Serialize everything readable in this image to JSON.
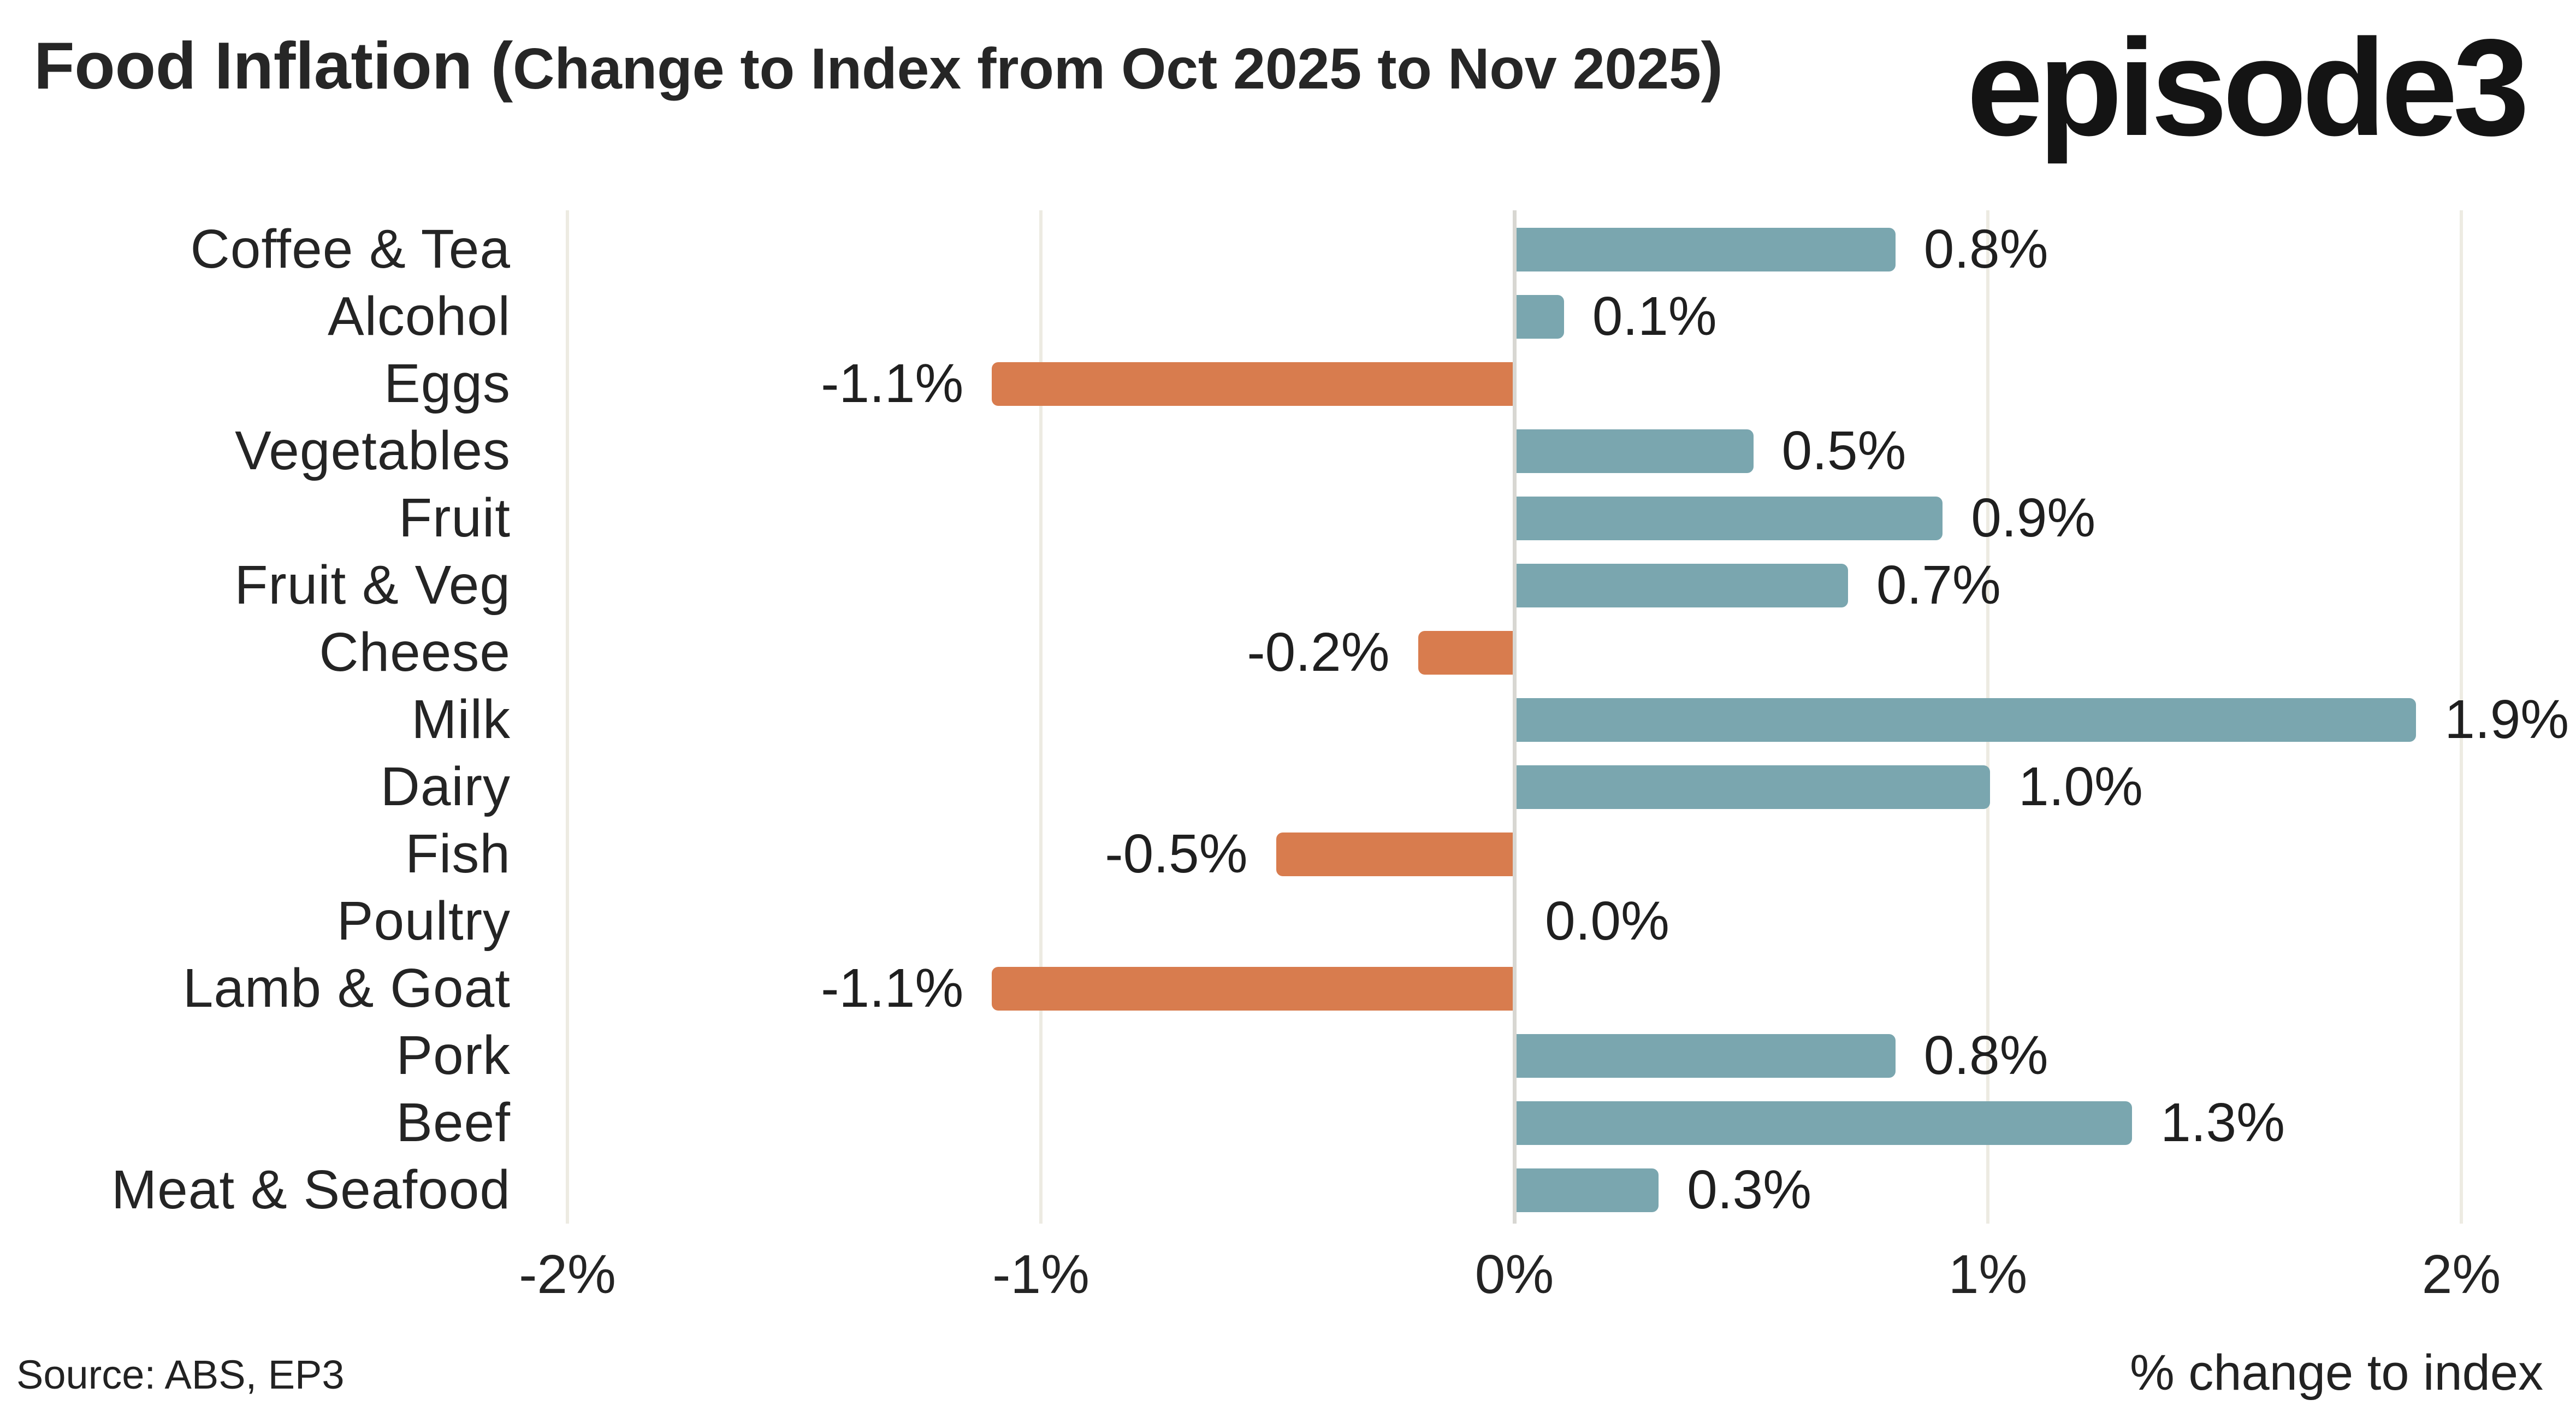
{
  "title": {
    "main": "Food Inflation (",
    "subtitle": "Change to Index from Oct 2025 to Nov 2025",
    "close": ")"
  },
  "logo": {
    "text": "episode3"
  },
  "footer": {
    "source": "Source: ABS, EP3",
    "axis_title": "% change to index"
  },
  "colors": {
    "positive_bar": "#7AA6AF",
    "negative_bar": "#D87C4E",
    "gridline": "#EDEBE2",
    "zero_axis": "#D8D7D2",
    "text": "#222222"
  },
  "chart_data": {
    "type": "bar",
    "orientation": "horizontal",
    "title": "Food Inflation (Change to Index from Oct 2025 to Nov 2025)",
    "xlabel": "% change to index",
    "categories": [
      "Coffee & Tea",
      "Alcohol",
      "Eggs",
      "Vegetables",
      "Fruit",
      "Fruit & Veg",
      "Cheese",
      "Milk",
      "Dairy",
      "Fish",
      "Poultry",
      "Lamb & Goat",
      "Pork",
      "Beef",
      "Meat & Seafood"
    ],
    "values": [
      0.8,
      0.1,
      -1.1,
      0.5,
      0.9,
      0.7,
      -0.2,
      1.9,
      1.0,
      -0.5,
      0.0,
      -1.1,
      0.8,
      1.3,
      0.3
    ],
    "value_labels": [
      "0.8%",
      "0.1%",
      "-1.1%",
      "0.5%",
      "0.9%",
      "0.7%",
      "-0.2%",
      "1.9%",
      "1.0%",
      "-0.5%",
      "0.0%",
      "-1.1%",
      "0.8%",
      "1.3%",
      "0.3%"
    ],
    "xlim": [
      -2,
      2
    ],
    "xticks": [
      -2,
      -1,
      0,
      1,
      2
    ],
    "xtick_labels": [
      "-2%",
      "-1%",
      "0%",
      "1%",
      "2%"
    ],
    "grid": "vertical",
    "legend": "none"
  }
}
